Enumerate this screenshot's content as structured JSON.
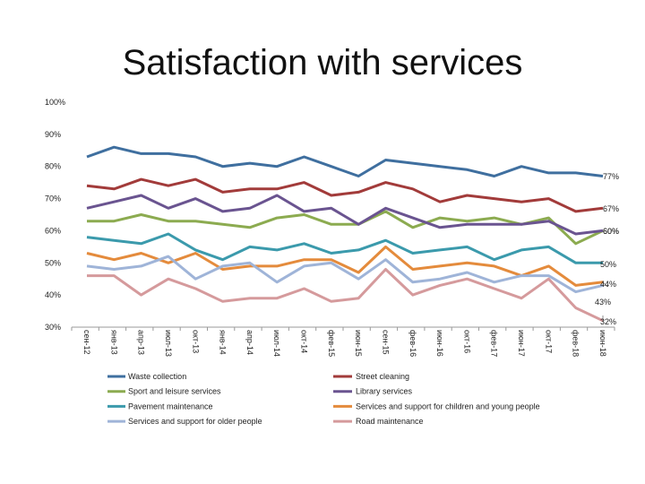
{
  "chart_data": {
    "type": "line",
    "title": "Satisfaction with services",
    "xlabel": "",
    "ylabel": "",
    "ylim": [
      30,
      100
    ],
    "yticks": [
      "30%",
      "40%",
      "50%",
      "60%",
      "70%",
      "80%",
      "90%",
      "100%"
    ],
    "yticks_values": [
      30,
      40,
      50,
      60,
      70,
      80,
      90,
      100
    ],
    "categories": [
      "сен-12",
      "янв-13",
      "апр-13",
      "июл-13",
      "окт-13",
      "янв-14",
      "апр-14",
      "июл-14",
      "окт-14",
      "фев-15",
      "июн-15",
      "сен-15",
      "фев-16",
      "июн-16",
      "окт-16",
      "фев-17",
      "июн-17",
      "окт-17",
      "фев-18",
      "июн-18"
    ],
    "legend_position": "bottom",
    "grid": false,
    "series": [
      {
        "name": "Waste collection",
        "color": "#3f6f9f",
        "end_label": "77%",
        "values": [
          83,
          86,
          84,
          84,
          83,
          80,
          81,
          80,
          83,
          80,
          77,
          82,
          81,
          80,
          79,
          77,
          80,
          78,
          78,
          77
        ]
      },
      {
        "name": "Street cleaning",
        "color": "#a23b3a",
        "end_label": "67%",
        "values": [
          74,
          73,
          76,
          74,
          76,
          72,
          73,
          73,
          75,
          71,
          72,
          75,
          73,
          69,
          71,
          70,
          69,
          70,
          66,
          67
        ]
      },
      {
        "name": "Sport and leisure services",
        "color": "#8cab50",
        "end_label": "60%",
        "values": [
          63,
          63,
          65,
          63,
          63,
          62,
          61,
          64,
          65,
          62,
          62,
          66,
          61,
          64,
          63,
          64,
          62,
          64,
          56,
          60
        ]
      },
      {
        "name": "Library services",
        "color": "#6a5490",
        "end_label": "60%",
        "values": [
          67,
          69,
          71,
          67,
          70,
          66,
          67,
          71,
          66,
          67,
          62,
          67,
          64,
          61,
          62,
          62,
          62,
          63,
          59,
          60
        ]
      },
      {
        "name": "Pavement maintenance",
        "color": "#3b9aac",
        "end_label": "50%",
        "values": [
          58,
          57,
          56,
          59,
          54,
          51,
          55,
          54,
          56,
          53,
          54,
          57,
          53,
          54,
          55,
          51,
          54,
          55,
          50,
          50
        ]
      },
      {
        "name": "Services and support for children and young people",
        "color": "#e48b3c",
        "end_label": "44%",
        "values": [
          53,
          51,
          53,
          50,
          53,
          48,
          49,
          49,
          51,
          51,
          47,
          55,
          48,
          49,
          50,
          49,
          46,
          49,
          43,
          44
        ]
      },
      {
        "name": "Services and support for older people",
        "color": "#9fb4d8",
        "end_label": "43%",
        "values": [
          49,
          48,
          49,
          52,
          45,
          49,
          50,
          44,
          49,
          50,
          45,
          51,
          44,
          45,
          47,
          44,
          46,
          46,
          41,
          43
        ]
      },
      {
        "name": "Road maintenance",
        "color": "#d59a9c",
        "end_label": "32%",
        "values": [
          46,
          46,
          40,
          45,
          42,
          38,
          39,
          39,
          42,
          38,
          39,
          48,
          40,
          43,
          45,
          42,
          39,
          45,
          36,
          32
        ]
      }
    ]
  }
}
